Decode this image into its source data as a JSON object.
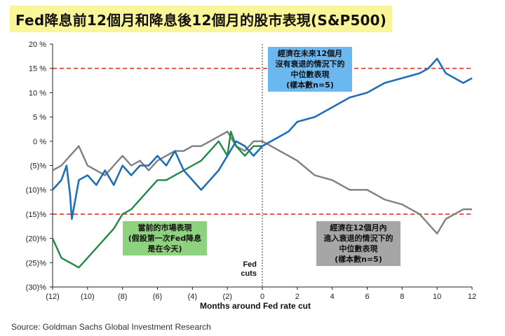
{
  "title": "Fed降息前12個月和降息後12個月的股市表現(S&P500)",
  "source": "Source: Goldman Sachs Global Investment Research",
  "colors": {
    "title_bg": "#fbf59a",
    "blue": "#1f6fb8",
    "gray": "#808080",
    "green": "#1e8a46",
    "ref_line": "#e0342a",
    "blue_label_bg": "#6bb7f0",
    "green_label_bg": "#8ed17e",
    "gray_label_bg": "#a6a6a6"
  },
  "chart_data": {
    "type": "line",
    "title": "",
    "xlabel": "Months around Fed rate cut",
    "ylabel": "",
    "xlim": [
      -12,
      12
    ],
    "ylim": [
      -30,
      20
    ],
    "x_ticks": [
      -12,
      -10,
      -8,
      -6,
      -4,
      -2,
      0,
      2,
      4,
      6,
      8,
      10,
      12
    ],
    "x_tick_labels": [
      "(12)",
      "(10)",
      "(8)",
      "(6)",
      "(4)",
      "(2)",
      "0",
      "2",
      "4",
      "6",
      "8",
      "10",
      "12"
    ],
    "y_ticks": [
      -30,
      -25,
      -20,
      -15,
      -10,
      -5,
      0,
      5,
      10,
      15,
      20
    ],
    "y_tick_labels": [
      "(30)%",
      "(25)%",
      "(20)%",
      "(15)%",
      "(10)%",
      "(5)%",
      "0 %",
      "5 %",
      "10 %",
      "15 %",
      "20 %"
    ],
    "grid": false,
    "reference_lines": [
      15,
      -15
    ],
    "event_line": {
      "x": 0,
      "label": [
        "Fed",
        "cuts"
      ]
    },
    "series": [
      {
        "key": "blue",
        "points": [
          [
            -12,
            -10
          ],
          [
            -11.5,
            -8
          ],
          [
            -11.2,
            -5
          ],
          [
            -11,
            -11
          ],
          [
            -10.9,
            -16
          ],
          [
            -10.5,
            -8
          ],
          [
            -10,
            -7
          ],
          [
            -9.5,
            -9
          ],
          [
            -9,
            -6
          ],
          [
            -8.5,
            -9
          ],
          [
            -8,
            -5
          ],
          [
            -7.5,
            -7
          ],
          [
            -7,
            -5
          ],
          [
            -6.5,
            -5
          ],
          [
            -6,
            -3
          ],
          [
            -5.5,
            -5
          ],
          [
            -5,
            -2
          ],
          [
            -4.5,
            -6
          ],
          [
            -4,
            -8
          ],
          [
            -3.5,
            -10
          ],
          [
            -3,
            -8
          ],
          [
            -2.5,
            -6
          ],
          [
            -2,
            -3
          ],
          [
            -1.5,
            0
          ],
          [
            -1,
            -1
          ],
          [
            -0.5,
            -3
          ],
          [
            0,
            -1
          ],
          [
            0.5,
            0
          ],
          [
            1,
            1
          ],
          [
            1.5,
            2
          ],
          [
            2,
            4
          ],
          [
            3,
            5
          ],
          [
            4,
            7
          ],
          [
            5,
            9
          ],
          [
            6,
            10
          ],
          [
            7,
            12
          ],
          [
            8,
            13
          ],
          [
            9,
            14
          ],
          [
            9.5,
            15
          ],
          [
            10,
            17
          ],
          [
            10.5,
            14
          ],
          [
            11,
            13
          ],
          [
            11.5,
            12
          ],
          [
            12,
            13
          ]
        ]
      },
      {
        "key": "gray",
        "points": [
          [
            -12,
            -6
          ],
          [
            -11.5,
            -5
          ],
          [
            -11,
            -3
          ],
          [
            -10.5,
            -1
          ],
          [
            -10,
            -5
          ],
          [
            -9.5,
            -6
          ],
          [
            -9,
            -7
          ],
          [
            -8.5,
            -5
          ],
          [
            -8,
            -3
          ],
          [
            -7.5,
            -5
          ],
          [
            -7,
            -4
          ],
          [
            -6.5,
            -6
          ],
          [
            -6,
            -4
          ],
          [
            -5.5,
            -3
          ],
          [
            -5,
            -2
          ],
          [
            -4.5,
            -2
          ],
          [
            -4,
            -1
          ],
          [
            -3.5,
            -1
          ],
          [
            -3,
            0
          ],
          [
            -2.5,
            1
          ],
          [
            -2,
            2
          ],
          [
            -1.5,
            -1
          ],
          [
            -1,
            -2
          ],
          [
            -0.5,
            0
          ],
          [
            0,
            0
          ],
          [
            0.5,
            -1
          ],
          [
            1,
            -2
          ],
          [
            1.5,
            -3
          ],
          [
            2,
            -4
          ],
          [
            3,
            -7
          ],
          [
            4,
            -8
          ],
          [
            5,
            -10
          ],
          [
            6,
            -10
          ],
          [
            7,
            -12
          ],
          [
            8,
            -13
          ],
          [
            9,
            -15
          ],
          [
            9.5,
            -17
          ],
          [
            10,
            -19
          ],
          [
            10.5,
            -16
          ],
          [
            11,
            -15
          ],
          [
            11.5,
            -14
          ],
          [
            12,
            -14
          ]
        ]
      },
      {
        "key": "green",
        "points": [
          [
            -12,
            -20
          ],
          [
            -11.5,
            -24
          ],
          [
            -11,
            -25
          ],
          [
            -10.5,
            -26
          ],
          [
            -10,
            -24
          ],
          [
            -9.5,
            -22
          ],
          [
            -9,
            -20
          ],
          [
            -8.5,
            -18
          ],
          [
            -8,
            -15
          ],
          [
            -7.5,
            -14
          ],
          [
            -7,
            -12
          ],
          [
            -6.5,
            -10
          ],
          [
            -6,
            -8
          ],
          [
            -5.5,
            -8
          ],
          [
            -5,
            -7
          ],
          [
            -4.5,
            -6
          ],
          [
            -4,
            -5
          ],
          [
            -3.5,
            -4
          ],
          [
            -3,
            -2
          ],
          [
            -2.5,
            0
          ],
          [
            -2,
            -3
          ],
          [
            -1.8,
            2
          ],
          [
            -1.5,
            -1
          ],
          [
            -1,
            -3
          ],
          [
            -0.5,
            -1
          ],
          [
            0,
            -1
          ]
        ]
      }
    ]
  },
  "annotations": {
    "blue": [
      "經濟在未來12個月",
      "沒有衰退的情況下的",
      "中位數表現",
      "(樣本數n=5)"
    ],
    "green": [
      "當前的市場表現",
      "(假設第一次Fed降息",
      "是在今天)"
    ],
    "gray": [
      "經濟在12個月內",
      "進入衰退的情況下的",
      "中位數表現",
      "(樣本數n=5)"
    ]
  }
}
